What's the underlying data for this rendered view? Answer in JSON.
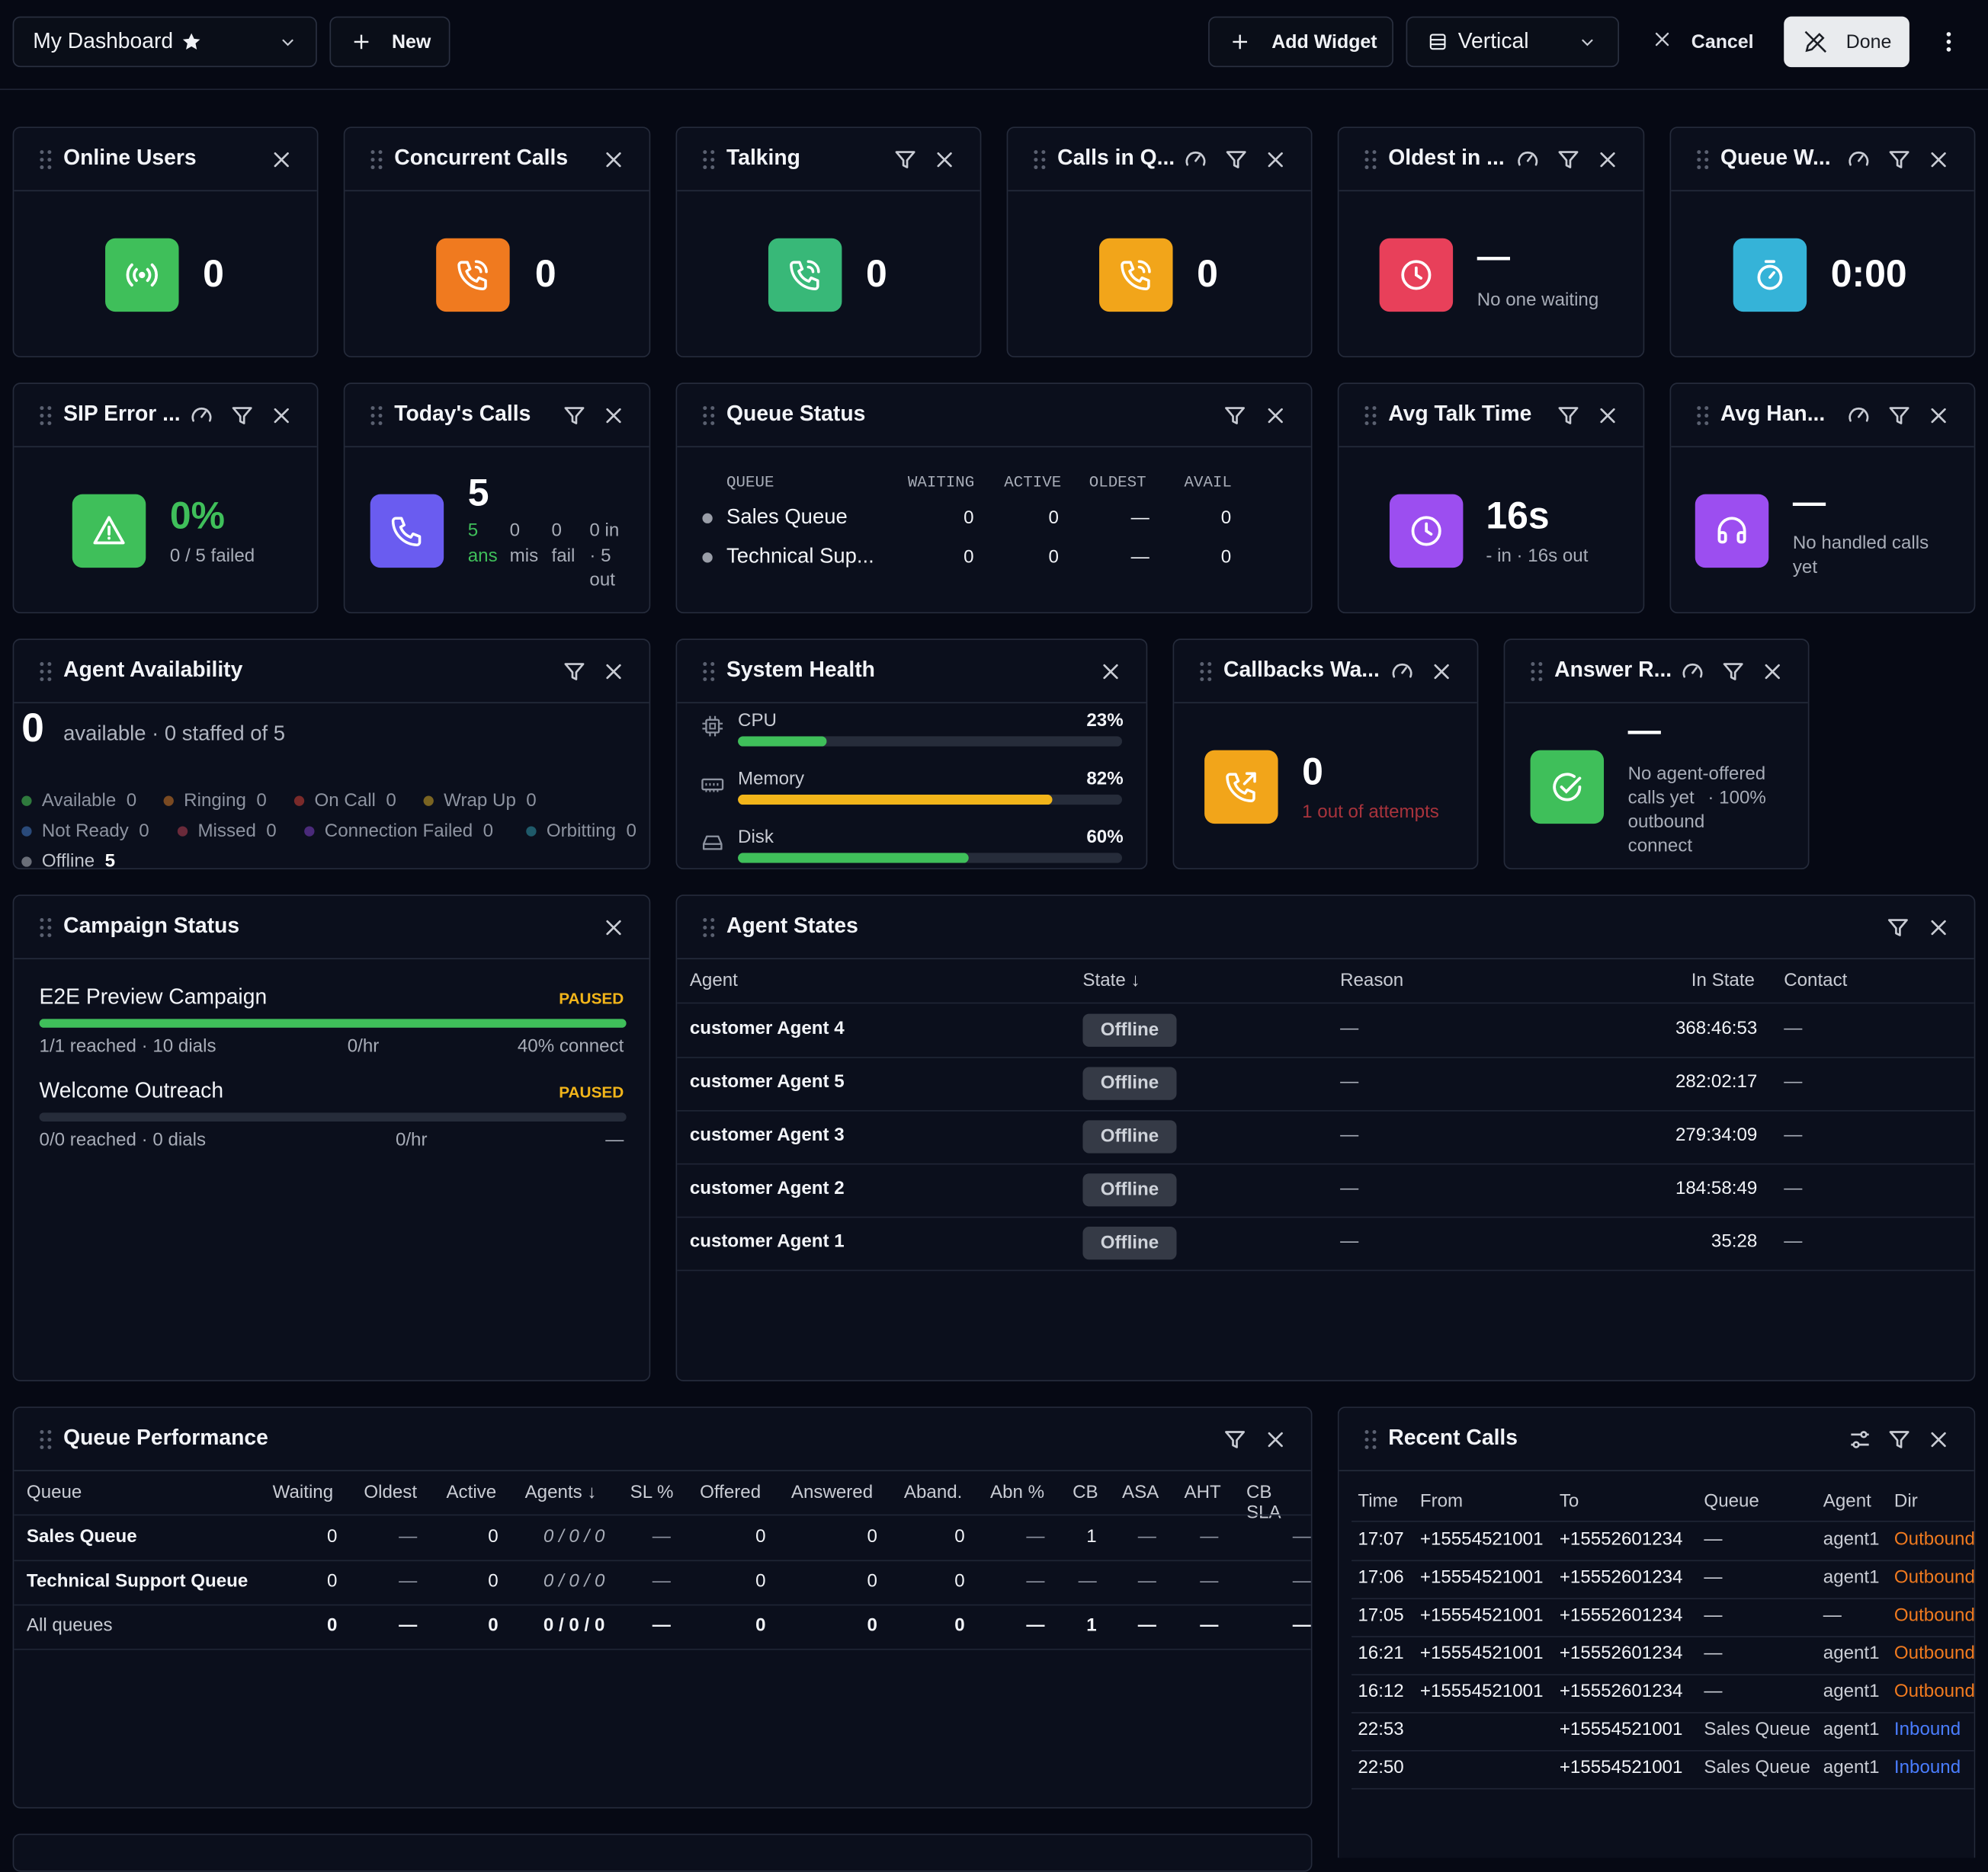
{
  "topbar": {
    "dashboard_name": "My Dashboard",
    "new_label": "New",
    "add_widget_label": "Add Widget",
    "layout_value": "Vertical",
    "cancel_label": "Cancel",
    "done_label": "Done"
  },
  "colors": {
    "green": "#3fbf5a",
    "orange": "#f07a1f",
    "teal_green": "#38b878",
    "amber": "#f2a51a",
    "red": "#e8405a",
    "cyan": "#35b3d8",
    "indigo": "#6a5cf0",
    "purple": "#9c4ef0",
    "blue_link": "#4a7dff"
  },
  "stats": {
    "online_users": {
      "title": "Online Users",
      "value": "0",
      "icon": "broadcast-icon"
    },
    "concurrent_calls": {
      "title": "Concurrent Calls",
      "value": "0",
      "icon": "phone-call-icon"
    },
    "talking": {
      "title": "Talking",
      "value": "0",
      "icon": "phone-call-icon"
    },
    "calls_in_queue": {
      "title": "Calls in Q...",
      "value": "0",
      "icon": "phone-call-icon"
    },
    "oldest": {
      "title": "Oldest in ...",
      "value": "—",
      "sub": "No one waiting",
      "icon": "clock-icon"
    },
    "queue_wait": {
      "title": "Queue W...",
      "value": "0:00",
      "icon": "stopwatch-icon"
    },
    "sip_error": {
      "title": "SIP Error ...",
      "value": "0%",
      "sub": "0 / 5 failed",
      "icon": "warning-icon"
    },
    "todays_calls": {
      "title": "Today's Calls",
      "value": "5",
      "ans_v": "5",
      "ans_l": "ans",
      "mis_v": "0",
      "mis_l": "mis",
      "fail_v": "0",
      "fail_l": "fail",
      "io_a": "0 in",
      "io_b": "· 5",
      "io_c": "out",
      "icon": "phone-icon"
    },
    "avg_talk": {
      "title": "Avg Talk Time",
      "value": "16s",
      "sub": "- in · 16s out",
      "icon": "clock-icon"
    },
    "avg_handle": {
      "title": "Avg Han...",
      "value": "—",
      "sub_a": "No handled calls",
      "sub_b": "yet",
      "icon": "headphones-icon"
    }
  },
  "queue_status": {
    "title": "Queue Status",
    "headers": [
      "QUEUE",
      "WAITING",
      "ACTIVE",
      "OLDEST",
      "AVAIL"
    ],
    "rows": [
      {
        "name": "Sales Queue",
        "waiting": "0",
        "active": "0",
        "oldest": "—",
        "avail": "0"
      },
      {
        "name": "Technical Sup...",
        "waiting": "0",
        "active": "0",
        "oldest": "—",
        "avail": "0"
      }
    ]
  },
  "agent_availability": {
    "title": "Agent Availability",
    "count": "0",
    "summary": "available · 0 staffed of 5",
    "legend": [
      {
        "label": "Available",
        "value": "0",
        "color": "#2f7a3d"
      },
      {
        "label": "Ringing",
        "value": "0",
        "color": "#7a4a22"
      },
      {
        "label": "On Call",
        "value": "0",
        "color": "#7a2a2a"
      },
      {
        "label": "Wrap Up",
        "value": "0",
        "color": "#7a6422"
      },
      {
        "label": "Not Ready",
        "value": "0",
        "color": "#2a4a7a"
      },
      {
        "label": "Missed",
        "value": "0",
        "color": "#6a2a3a"
      },
      {
        "label": "Connection Failed",
        "value": "0",
        "color": "#4a2a7a"
      },
      {
        "label": "Orbitting",
        "value": "0",
        "color": "#1f5a6a"
      },
      {
        "label": "Offline",
        "value": "5",
        "color": "#6a6e78"
      }
    ]
  },
  "system_health": {
    "title": "System Health",
    "items": [
      {
        "label": "CPU",
        "value": "23%",
        "pct": 23,
        "color": "#3fbf5a",
        "icon": "cpu-icon"
      },
      {
        "label": "Memory",
        "value": "82%",
        "pct": 82,
        "color": "#f2b51a",
        "icon": "memory-icon"
      },
      {
        "label": "Disk",
        "value": "60%",
        "pct": 60,
        "color": "#3fbf5a",
        "icon": "disk-icon"
      }
    ]
  },
  "callbacks": {
    "title": "Callbacks Wa...",
    "value": "0",
    "sub": "1 out of attempts",
    "icon": "phone-outgoing-icon"
  },
  "answer_rate": {
    "title": "Answer R...",
    "value": "—",
    "l1": "No agent-offered",
    "l2a": "calls yet",
    "l2b": "· 100%",
    "l3": "outbound",
    "l4": "connect",
    "icon": "check-circle-icon"
  },
  "campaign_status": {
    "title": "Campaign Status",
    "campaigns": [
      {
        "name": "E2E Preview Campaign",
        "status": "PAUSED",
        "progress": 100,
        "reached": "1/1 reached · 10 dials",
        "rate": "0/hr",
        "connect": "40% connect"
      },
      {
        "name": "Welcome Outreach",
        "status": "PAUSED",
        "progress": 0,
        "reached": "0/0 reached · 0 dials",
        "rate": "0/hr",
        "connect": "—"
      }
    ]
  },
  "agent_states": {
    "title": "Agent States",
    "headers": {
      "agent": "Agent",
      "state": "State ↓",
      "reason": "Reason",
      "in_state": "In State",
      "contact": "Contact"
    },
    "rows": [
      {
        "agent": "customer Agent 4",
        "state": "Offline",
        "reason": "—",
        "in_state": "368:46:53",
        "contact": "—"
      },
      {
        "agent": "customer Agent 5",
        "state": "Offline",
        "reason": "—",
        "in_state": "282:02:17",
        "contact": "—"
      },
      {
        "agent": "customer Agent 3",
        "state": "Offline",
        "reason": "—",
        "in_state": "279:34:09",
        "contact": "—"
      },
      {
        "agent": "customer Agent 2",
        "state": "Offline",
        "reason": "—",
        "in_state": "184:58:49",
        "contact": "—"
      },
      {
        "agent": "customer Agent 1",
        "state": "Offline",
        "reason": "—",
        "in_state": "35:28",
        "contact": "—"
      }
    ]
  },
  "queue_performance": {
    "title": "Queue Performance",
    "headers": [
      "Queue",
      "Waiting",
      "Oldest",
      "Active",
      "Agents ↓",
      "SL %",
      "Offered",
      "Answered",
      "Aband.",
      "Abn %",
      "CB",
      "ASA",
      "AHT",
      "CB SLA"
    ],
    "rows": [
      {
        "queue": "Sales Queue",
        "cells": [
          "0",
          "—",
          "0",
          "0 / 0 / 0",
          "—",
          "0",
          "0",
          "0",
          "—",
          "1",
          "—",
          "—",
          "—"
        ]
      },
      {
        "queue": "Technical Support Queue",
        "cells": [
          "0",
          "—",
          "0",
          "0 / 0 / 0",
          "—",
          "0",
          "0",
          "0",
          "—",
          "—",
          "—",
          "—",
          "—"
        ]
      },
      {
        "queue": "All queues",
        "cells": [
          "0",
          "—",
          "0",
          "0 / 0 / 0",
          "—",
          "0",
          "0",
          "0",
          "—",
          "1",
          "—",
          "—",
          "—"
        ]
      }
    ]
  },
  "recent_calls": {
    "title": "Recent Calls",
    "headers": [
      "Time",
      "From",
      "To",
      "Queue",
      "Agent",
      "Dir"
    ],
    "rows": [
      {
        "time": "17:07",
        "from": "+15554521001",
        "to": "+15552601234",
        "queue": "—",
        "agent": "agent1",
        "dir": "Outbound"
      },
      {
        "time": "17:06",
        "from": "+15554521001",
        "to": "+15552601234",
        "queue": "—",
        "agent": "agent1",
        "dir": "Outbound"
      },
      {
        "time": "17:05",
        "from": "+15554521001",
        "to": "+15552601234",
        "queue": "—",
        "agent": "—",
        "dir": "Outbound"
      },
      {
        "time": "16:21",
        "from": "+15554521001",
        "to": "+15552601234",
        "queue": "—",
        "agent": "agent1",
        "dir": "Outbound"
      },
      {
        "time": "16:12",
        "from": "+15554521001",
        "to": "+15552601234",
        "queue": "—",
        "agent": "agent1",
        "dir": "Outbound"
      },
      {
        "time": "22:53",
        "from": "",
        "to": "+15554521001",
        "queue": "Sales Queue",
        "agent": "agent1",
        "dir": "Inbound"
      },
      {
        "time": "22:50",
        "from": "",
        "to": "+15554521001",
        "queue": "Sales Queue",
        "agent": "agent1",
        "dir": "Inbound"
      }
    ]
  }
}
